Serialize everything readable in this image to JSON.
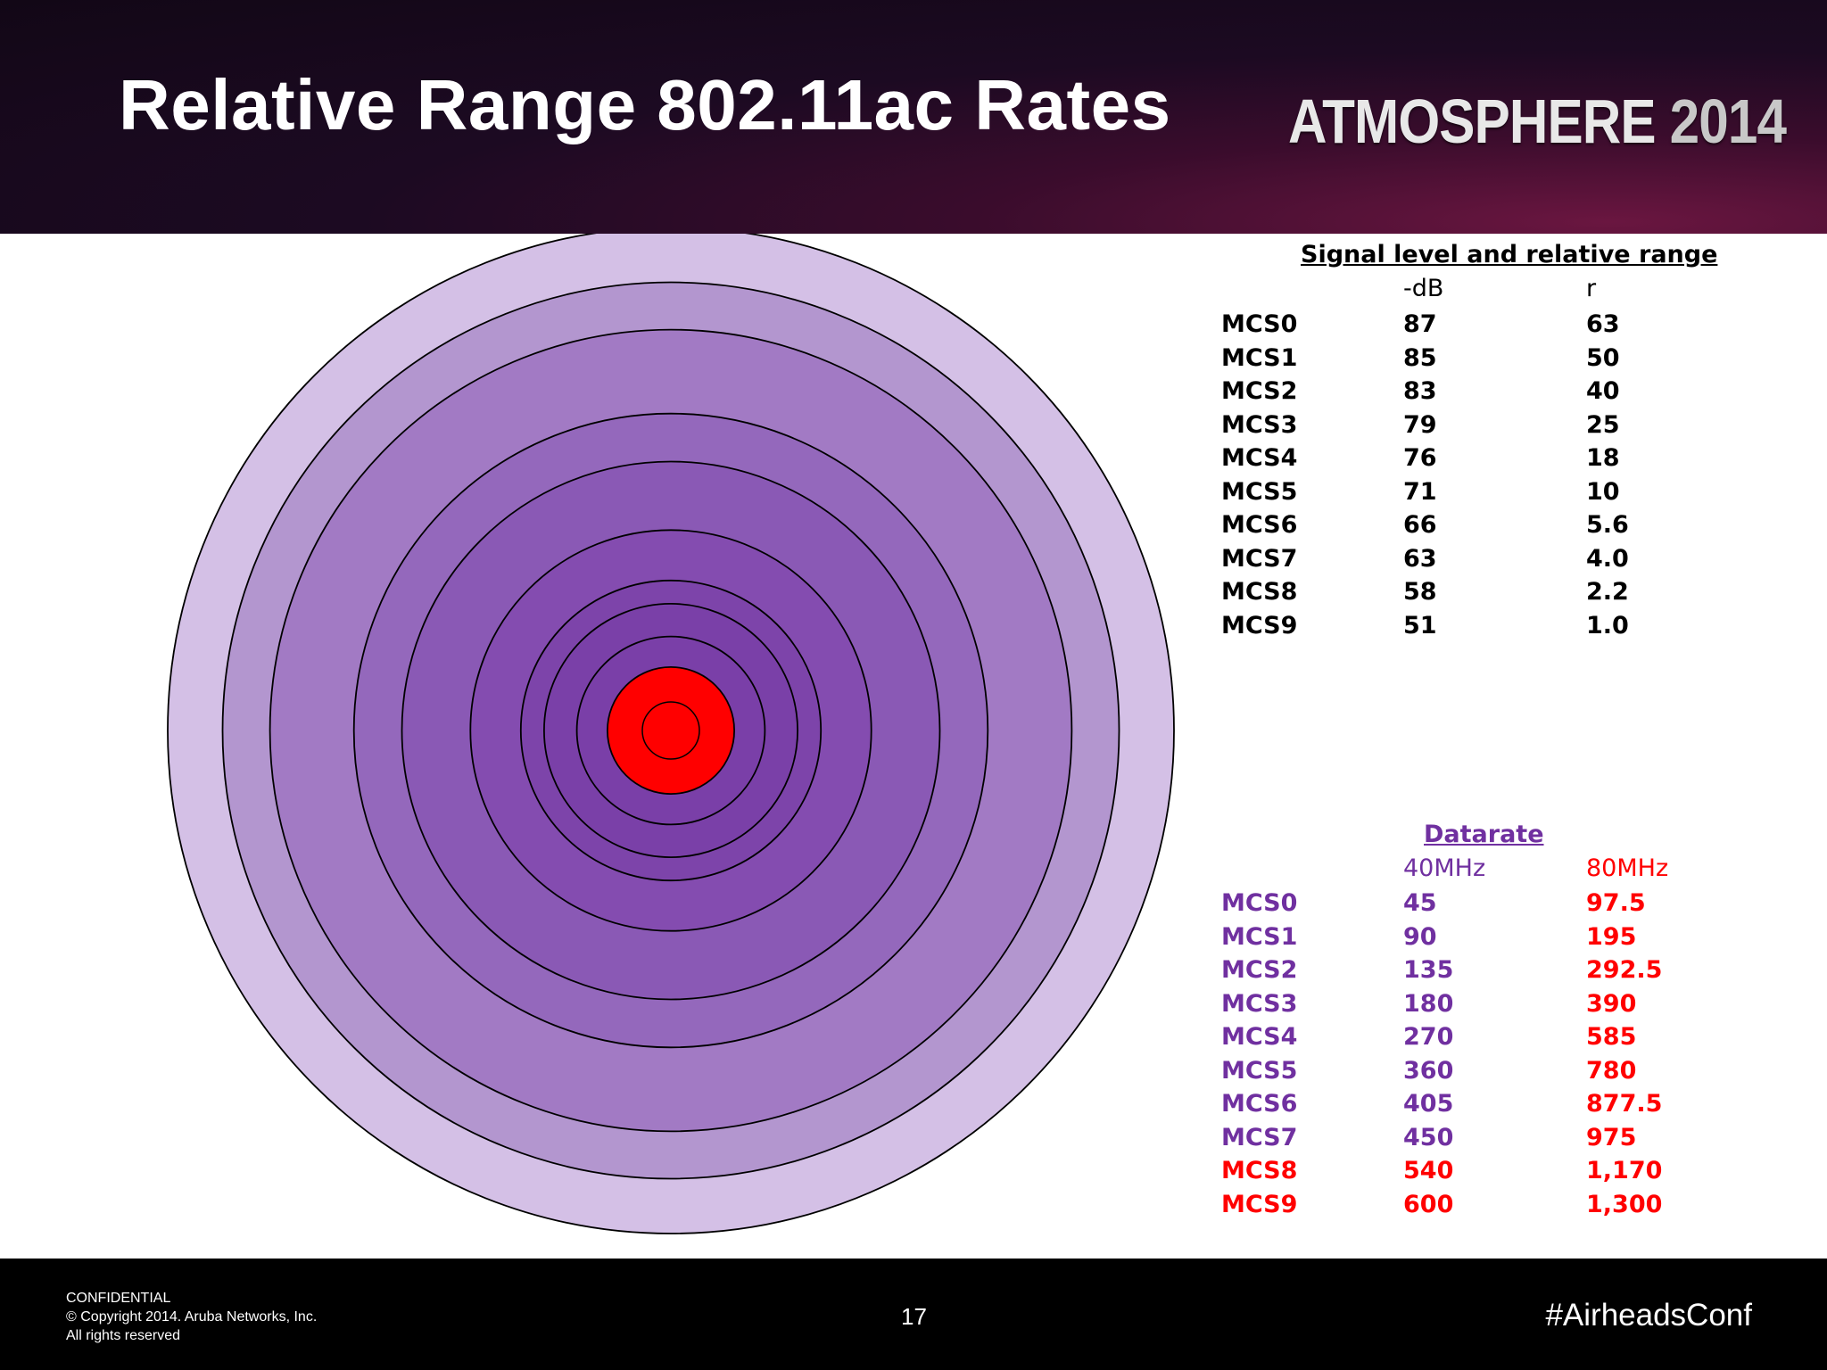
{
  "slide": {
    "title": "Relative Range 802.11ac Rates",
    "logo_word": "ATMOSPHERE",
    "logo_year": "2014"
  },
  "colors": {
    "header_dark": "#120716",
    "ring_fills": [
      "#d4c0e6",
      "#b396cf",
      "#a27ac4",
      "#9468bc",
      "#8a59b5",
      "#844cb0",
      "#7d44aa",
      "#7a40a8",
      "#7a3fa8",
      "#ff0000"
    ],
    "ring_stroke": "#000000",
    "purple_text": "#7030a0",
    "red_text": "#ff0000"
  },
  "range_table": {
    "heading": "Signal level and relative range",
    "col1_header": "-dB",
    "col2_header": "r",
    "rows": [
      {
        "mcs": "MCS0",
        "db": "87",
        "r": "63"
      },
      {
        "mcs": "MCS1",
        "db": "85",
        "r": "50"
      },
      {
        "mcs": "MCS2",
        "db": "83",
        "r": "40"
      },
      {
        "mcs": "MCS3",
        "db": "79",
        "r": "25"
      },
      {
        "mcs": "MCS4",
        "db": "76",
        "r": "18"
      },
      {
        "mcs": "MCS5",
        "db": "71",
        "r": "10"
      },
      {
        "mcs": "MCS6",
        "db": "66",
        "r": "5.6"
      },
      {
        "mcs": "MCS7",
        "db": "63",
        "r": "4.0"
      },
      {
        "mcs": "MCS8",
        "db": "58",
        "r": "2.2"
      },
      {
        "mcs": "MCS9",
        "db": "51",
        "r": "1.0"
      }
    ]
  },
  "datarate_table": {
    "heading": "Datarate",
    "col1_header": "40MHz",
    "col2_header": "80MHz",
    "rows": [
      {
        "mcs": "MCS0",
        "mhz40": "45",
        "mhz80": "97.5",
        "mcs_color": "purple"
      },
      {
        "mcs": "MCS1",
        "mhz40": "90",
        "mhz80": "195",
        "mcs_color": "purple"
      },
      {
        "mcs": "MCS2",
        "mhz40": "135",
        "mhz80": "292.5",
        "mcs_color": "purple"
      },
      {
        "mcs": "MCS3",
        "mhz40": "180",
        "mhz80": "390",
        "mcs_color": "purple"
      },
      {
        "mcs": "MCS4",
        "mhz40": "270",
        "mhz80": "585",
        "mcs_color": "purple"
      },
      {
        "mcs": "MCS5",
        "mhz40": "360",
        "mhz80": "780",
        "mcs_color": "purple"
      },
      {
        "mcs": "MCS6",
        "mhz40": "405",
        "mhz80": "877.5",
        "mcs_color": "purple"
      },
      {
        "mcs": "MCS7",
        "mhz40": "450",
        "mhz80": "975",
        "mcs_color": "purple"
      },
      {
        "mcs": "MCS8",
        "mhz40": "540",
        "mhz80": "1,170",
        "mcs_color": "red"
      },
      {
        "mcs": "MCS9",
        "mhz40": "600",
        "mhz80": "1,300",
        "mcs_color": "red"
      }
    ]
  },
  "footer": {
    "line1": "CONFIDENTIAL",
    "line2": "© Copyright 2014. Aruba Networks, Inc.",
    "line3": "All rights reserved",
    "page_number": "17",
    "hashtag": "#AirheadsConf"
  }
}
